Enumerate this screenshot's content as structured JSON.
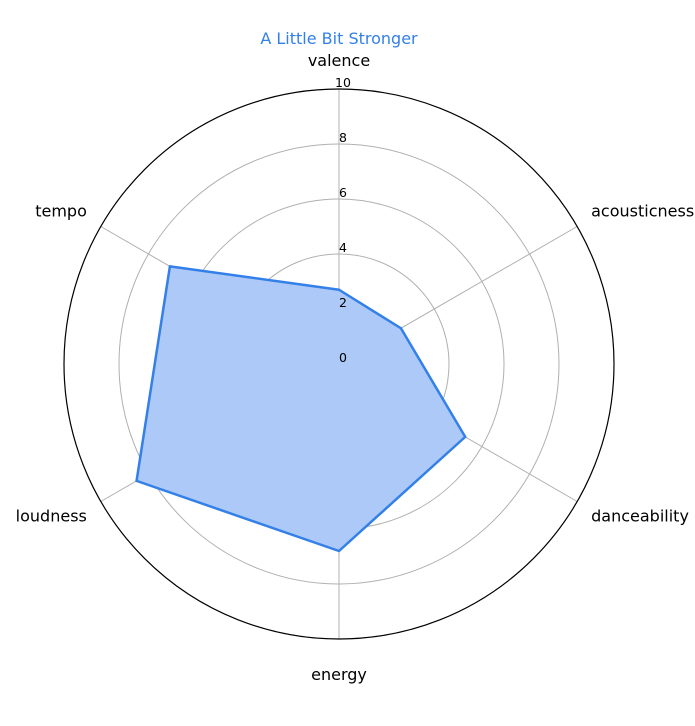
{
  "chart_data": {
    "type": "radar",
    "title": "A Little Bit Stronger",
    "axes": [
      "valence",
      "acousticness",
      "danceability",
      "energy",
      "loudness",
      "tempo"
    ],
    "series": [
      {
        "name": "",
        "values": [
          2.7,
          2.6,
          5.3,
          6.8,
          8.5,
          7.1
        ]
      }
    ],
    "rlim": [
      0,
      10
    ],
    "ticks": [
      "0",
      "2",
      "4",
      "6",
      "8",
      "10"
    ],
    "grid": true,
    "colors": {
      "line": "#3380e8",
      "fill": "#adc9f7",
      "grid": "#b0b0b0",
      "title": "#3380e8",
      "frame": "#000000"
    }
  }
}
